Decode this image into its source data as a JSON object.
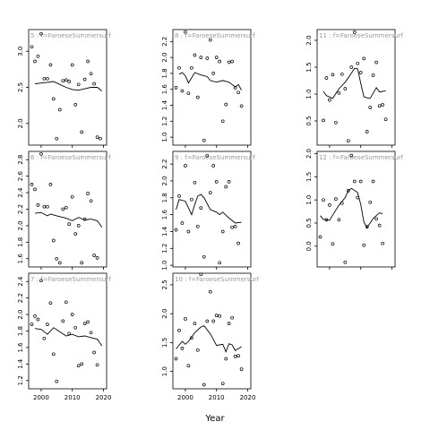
{
  "xlabel": "Year",
  "xticks": [
    2000,
    2010,
    2020
  ],
  "chart_data": [
    {
      "type": "scatter",
      "title": "5 : f=FaroeseSummersurf",
      "xlim": [
        1996,
        2021
      ],
      "ylim": [
        1.7,
        3.3
      ],
      "yticks": [
        "3.0",
        "2.5",
        "2.0"
      ],
      "ytick_values": [
        3.0,
        2.5,
        2.0
      ],
      "points": [
        [
          1997,
          3.06
        ],
        [
          1998,
          2.86
        ],
        [
          1999,
          2.93
        ],
        [
          2000,
          3.24
        ],
        [
          2001,
          2.62
        ],
        [
          2002,
          2.62
        ],
        [
          2003,
          2.81
        ],
        [
          2004,
          2.34
        ],
        [
          2005,
          1.79
        ],
        [
          2006,
          2.19
        ],
        [
          2007,
          2.59
        ],
        [
          2008,
          2.6
        ],
        [
          2009,
          2.58
        ],
        [
          2010,
          2.81
        ],
        [
          2011,
          2.26
        ],
        [
          2012,
          2.54
        ],
        [
          2013,
          1.88
        ],
        [
          2014,
          2.61
        ],
        [
          2015,
          2.86
        ],
        [
          2016,
          2.69
        ],
        [
          2017,
          2.55
        ],
        [
          2018,
          1.81
        ],
        [
          2019,
          1.79
        ]
      ],
      "smooth": [
        [
          1998,
          2.55
        ],
        [
          2000,
          2.56
        ],
        [
          2002,
          2.57
        ],
        [
          2004,
          2.58
        ],
        [
          2006,
          2.54
        ],
        [
          2008,
          2.5
        ],
        [
          2010,
          2.47
        ],
        [
          2012,
          2.46
        ],
        [
          2014,
          2.48
        ],
        [
          2016,
          2.5
        ],
        [
          2018,
          2.5
        ],
        [
          2019.5,
          2.45
        ]
      ]
    },
    {
      "type": "scatter",
      "title": "6 : f=FaroeseSummersurf",
      "xlim": [
        1996,
        2021
      ],
      "ylim": [
        1.5,
        2.9
      ],
      "yticks": [
        "2.8",
        "2.6",
        "2.4",
        "2.2",
        "2.0",
        "1.8",
        "1.6",
        "1.4"
      ],
      "ytick_values": [
        2.8,
        2.6,
        2.4,
        2.2,
        2.0,
        1.8,
        1.6,
        1.4
      ],
      "points": [
        [
          1997,
          2.5
        ],
        [
          1998,
          2.44
        ],
        [
          1999,
          2.25
        ],
        [
          2000,
          2.87
        ],
        [
          2001,
          2.23
        ],
        [
          2002,
          2.23
        ],
        [
          2003,
          2.5
        ],
        [
          2004,
          1.82
        ],
        [
          2005,
          1.6
        ],
        [
          2006,
          1.55
        ],
        [
          2007,
          2.2
        ],
        [
          2008,
          2.22
        ],
        [
          2009,
          2.02
        ],
        [
          2010,
          2.35
        ],
        [
          2011,
          1.9
        ],
        [
          2012,
          2.0
        ],
        [
          2013,
          1.55
        ],
        [
          2014,
          2.08
        ],
        [
          2015,
          2.39
        ],
        [
          2016,
          2.3
        ],
        [
          2017,
          1.64
        ],
        [
          2018,
          1.61
        ]
      ],
      "smooth": [
        [
          1998,
          2.15
        ],
        [
          2000,
          2.16
        ],
        [
          2002,
          2.12
        ],
        [
          2003,
          2.14
        ],
        [
          2005,
          2.12
        ],
        [
          2007,
          2.1
        ],
        [
          2008,
          2.09
        ],
        [
          2010,
          2.06
        ],
        [
          2012,
          2.1
        ],
        [
          2014,
          2.07
        ],
        [
          2016,
          2.08
        ],
        [
          2018,
          2.06
        ],
        [
          2019.5,
          1.98
        ]
      ]
    },
    {
      "type": "scatter",
      "title": "7 : f=FaroeseSummersurf",
      "xlim": [
        1996,
        2021
      ],
      "ylim": [
        1.1,
        2.5
      ],
      "yticks": [
        "2.4",
        "2.2",
        "2.0",
        "1.8",
        "1.6",
        "1.4",
        "1.2"
      ],
      "ytick_values": [
        2.4,
        2.2,
        2.0,
        1.8,
        1.6,
        1.4,
        1.2
      ],
      "points": [
        [
          1997,
          1.88
        ],
        [
          1998,
          1.98
        ],
        [
          1999,
          1.94
        ],
        [
          2000,
          2.41
        ],
        [
          2001,
          1.71
        ],
        [
          2002,
          1.88
        ],
        [
          2003,
          2.14
        ],
        [
          2004,
          1.52
        ],
        [
          2005,
          1.19
        ],
        [
          2006,
          1.08
        ],
        [
          2007,
          1.92
        ],
        [
          2008,
          2.15
        ],
        [
          2009,
          1.77
        ],
        [
          2010,
          2.0
        ],
        [
          2011,
          1.84
        ],
        [
          2012,
          1.38
        ],
        [
          2013,
          1.4
        ],
        [
          2014,
          1.89
        ],
        [
          2015,
          1.91
        ],
        [
          2016,
          1.78
        ],
        [
          2017,
          1.54
        ],
        [
          2018,
          1.39
        ]
      ],
      "smooth": [
        [
          1998,
          1.83
        ],
        [
          2000,
          1.82
        ],
        [
          2002,
          1.76
        ],
        [
          2004,
          1.84
        ],
        [
          2006,
          1.79
        ],
        [
          2008,
          1.74
        ],
        [
          2010,
          1.76
        ],
        [
          2012,
          1.73
        ],
        [
          2014,
          1.74
        ],
        [
          2016,
          1.72
        ],
        [
          2018,
          1.7
        ],
        [
          2019.5,
          1.62
        ]
      ]
    },
    {
      "type": "scatter",
      "title": "8 : f=FaroeseSummersurf",
      "xlim": [
        1996,
        2021
      ],
      "ylim": [
        0.9,
        2.35
      ],
      "yticks": [
        "2.2",
        "2.0",
        "1.8",
        "1.6",
        "1.4",
        "1.2",
        "1.0"
      ],
      "ytick_values": [
        2.2,
        2.0,
        1.8,
        1.6,
        1.4,
        1.2,
        1.0
      ],
      "points": [
        [
          1997,
          1.62
        ],
        [
          1998,
          1.87
        ],
        [
          1999,
          1.58
        ],
        [
          2000,
          2.32
        ],
        [
          2001,
          1.55
        ],
        [
          2002,
          1.87
        ],
        [
          2003,
          2.03
        ],
        [
          2004,
          1.5
        ],
        [
          2005,
          2.0
        ],
        [
          2006,
          0.96
        ],
        [
          2007,
          1.99
        ],
        [
          2008,
          2.22
        ],
        [
          2009,
          1.8
        ],
        [
          2010,
          2.0
        ],
        [
          2011,
          1.95
        ],
        [
          2012,
          1.2
        ],
        [
          2013,
          1.41
        ],
        [
          2014,
          1.94
        ],
        [
          2015,
          1.95
        ],
        [
          2016,
          1.62
        ],
        [
          2017,
          1.56
        ],
        [
          2018,
          1.39
        ]
      ],
      "smooth": [
        [
          1998,
          1.79
        ],
        [
          1999,
          1.81
        ],
        [
          2000,
          1.77
        ],
        [
          2001,
          1.68
        ],
        [
          2003,
          1.81
        ],
        [
          2005,
          1.78
        ],
        [
          2007,
          1.76
        ],
        [
          2008,
          1.71
        ],
        [
          2010,
          1.69
        ],
        [
          2012,
          1.71
        ],
        [
          2014,
          1.69
        ],
        [
          2016,
          1.63
        ],
        [
          2017,
          1.66
        ],
        [
          2018,
          1.59
        ]
      ]
    },
    {
      "type": "scatter",
      "title": "9 : f=FaroeseSummersurf",
      "xlim": [
        1996,
        2021
      ],
      "ylim": [
        0.98,
        2.35
      ],
      "yticks": [
        "2.2",
        "2.0",
        "1.8",
        "1.6",
        "1.4",
        "1.2",
        "1.0"
      ],
      "ytick_values": [
        2.2,
        2.0,
        1.8,
        1.6,
        1.4,
        1.2,
        1.0
      ],
      "points": [
        [
          1997,
          1.42
        ],
        [
          1998,
          1.82
        ],
        [
          1999,
          1.5
        ],
        [
          2000,
          2.18
        ],
        [
          2001,
          1.4
        ],
        [
          2002,
          1.78
        ],
        [
          2003,
          1.98
        ],
        [
          2004,
          1.46
        ],
        [
          2005,
          1.68
        ],
        [
          2006,
          1.1
        ],
        [
          2007,
          2.3
        ],
        [
          2008,
          1.86
        ],
        [
          2009,
          2.18
        ],
        [
          2010,
          1.99
        ],
        [
          2011,
          1.03
        ],
        [
          2012,
          1.4
        ],
        [
          2013,
          1.93
        ],
        [
          2014,
          1.99
        ],
        [
          2015,
          1.45
        ],
        [
          2016,
          1.46
        ],
        [
          2017,
          1.26
        ]
      ],
      "smooth": [
        [
          1997,
          1.66
        ],
        [
          1998,
          1.78
        ],
        [
          2000,
          1.76
        ],
        [
          2002,
          1.6
        ],
        [
          2003,
          1.72
        ],
        [
          2004,
          1.82
        ],
        [
          2005,
          1.84
        ],
        [
          2006,
          1.8
        ],
        [
          2008,
          1.66
        ],
        [
          2010,
          1.63
        ],
        [
          2011,
          1.6
        ],
        [
          2012,
          1.63
        ],
        [
          2014,
          1.56
        ],
        [
          2016,
          1.5
        ],
        [
          2018,
          1.51
        ]
      ]
    },
    {
      "type": "scatter",
      "title": "10 : f=FaroeseSummersurf",
      "xlim": [
        1996,
        2021
      ],
      "ylim": [
        0.7,
        2.7
      ],
      "yticks": [
        "2.5",
        "2.0",
        "1.5",
        "1.0"
      ],
      "ytick_values": [
        2.5,
        2.0,
        1.5,
        1.0
      ],
      "points": [
        [
          1997,
          1.22
        ],
        [
          1998,
          1.71
        ],
        [
          1999,
          1.4
        ],
        [
          2000,
          1.91
        ],
        [
          2001,
          1.1
        ],
        [
          2002,
          1.58
        ],
        [
          2003,
          1.83
        ],
        [
          2004,
          1.37
        ],
        [
          2005,
          2.68
        ],
        [
          2006,
          0.77
        ],
        [
          2007,
          1.87
        ],
        [
          2008,
          2.38
        ],
        [
          2009,
          1.87
        ],
        [
          2010,
          1.97
        ],
        [
          2011,
          1.96
        ],
        [
          2012,
          0.79
        ],
        [
          2013,
          1.22
        ],
        [
          2014,
          1.83
        ],
        [
          2015,
          1.93
        ],
        [
          2016,
          1.26
        ],
        [
          2017,
          1.27
        ],
        [
          2018,
          1.04
        ]
      ],
      "smooth": [
        [
          1997,
          1.39
        ],
        [
          1999,
          1.52
        ],
        [
          2000,
          1.47
        ],
        [
          2001,
          1.52
        ],
        [
          2003,
          1.67
        ],
        [
          2005,
          1.77
        ],
        [
          2006,
          1.79
        ],
        [
          2008,
          1.65
        ],
        [
          2010,
          1.45
        ],
        [
          2012,
          1.47
        ],
        [
          2013,
          1.34
        ],
        [
          2014,
          1.48
        ],
        [
          2015,
          1.46
        ],
        [
          2016,
          1.36
        ],
        [
          2018,
          1.43
        ]
      ]
    },
    {
      "type": "scatter",
      "title": "11 : f=FaroeseSummersurf",
      "xlim": [
        1996,
        2021
      ],
      "ylim": [
        0.05,
        2.2
      ],
      "yticks": [
        "2.0",
        "1.5",
        "1.0",
        "0.5"
      ],
      "ytick_values": [
        2.0,
        1.5,
        1.0,
        0.5
      ],
      "points": [
        [
          1998,
          0.51
        ],
        [
          1999,
          1.3
        ],
        [
          2000,
          0.89
        ],
        [
          2001,
          1.36
        ],
        [
          2002,
          0.47
        ],
        [
          2003,
          1.02
        ],
        [
          2004,
          1.37
        ],
        [
          2005,
          1.1
        ],
        [
          2006,
          0.13
        ],
        [
          2007,
          1.5
        ],
        [
          2008,
          2.15
        ],
        [
          2009,
          1.57
        ],
        [
          2010,
          1.4
        ],
        [
          2011,
          1.66
        ],
        [
          2012,
          0.3
        ],
        [
          2013,
          0.75
        ],
        [
          2014,
          1.35
        ],
        [
          2015,
          1.59
        ],
        [
          2016,
          0.78
        ],
        [
          2017,
          0.8
        ],
        [
          2018,
          0.53
        ]
      ],
      "smooth": [
        [
          1998,
          1.05
        ],
        [
          1999,
          0.97
        ],
        [
          2001,
          0.92
        ],
        [
          2003,
          1.1
        ],
        [
          2005,
          1.22
        ],
        [
          2007,
          1.39
        ],
        [
          2008,
          1.48
        ],
        [
          2009,
          1.47
        ],
        [
          2010,
          1.2
        ],
        [
          2011,
          0.95
        ],
        [
          2012,
          0.93
        ],
        [
          2013,
          0.92
        ],
        [
          2015,
          1.12
        ],
        [
          2016,
          1.04
        ],
        [
          2018,
          1.06
        ]
      ]
    },
    {
      "type": "scatter",
      "title": "12 : f=FaroeseSummersurf",
      "xlim": [
        1996,
        2021
      ],
      "ylim": [
        -0.45,
        2.05
      ],
      "yticks": [
        "2.0",
        "1.5",
        "1.0",
        "0.5",
        "0.0"
      ],
      "ytick_values": [
        2.0,
        1.5,
        1.0,
        0.5,
        0.0
      ],
      "points": [
        [
          1997,
          0.2
        ],
        [
          1998,
          1.0
        ],
        [
          1999,
          0.57
        ],
        [
          2000,
          0.89
        ],
        [
          2001,
          0.05
        ],
        [
          2002,
          1.02
        ],
        [
          2003,
          0.57
        ],
        [
          2004,
          0.93
        ],
        [
          2005,
          -0.35
        ],
        [
          2006,
          1.2
        ],
        [
          2007,
          1.96
        ],
        [
          2008,
          1.4
        ],
        [
          2009,
          1.05
        ],
        [
          2010,
          1.4
        ],
        [
          2011,
          0.02
        ],
        [
          2012,
          0.42
        ],
        [
          2013,
          0.95
        ],
        [
          2014,
          1.4
        ],
        [
          2015,
          0.59
        ],
        [
          2016,
          0.45
        ],
        [
          2017,
          0.06
        ]
      ],
      "smooth": [
        [
          1997,
          0.66
        ],
        [
          1998,
          0.58
        ],
        [
          2000,
          0.56
        ],
        [
          2001,
          0.67
        ],
        [
          2003,
          0.89
        ],
        [
          2005,
          1.05
        ],
        [
          2006,
          1.2
        ],
        [
          2007,
          1.25
        ],
        [
          2009,
          1.16
        ],
        [
          2010,
          0.9
        ],
        [
          2011,
          0.52
        ],
        [
          2012,
          0.4
        ],
        [
          2014,
          0.6
        ],
        [
          2016,
          0.72
        ],
        [
          2017,
          0.7
        ]
      ]
    }
  ]
}
